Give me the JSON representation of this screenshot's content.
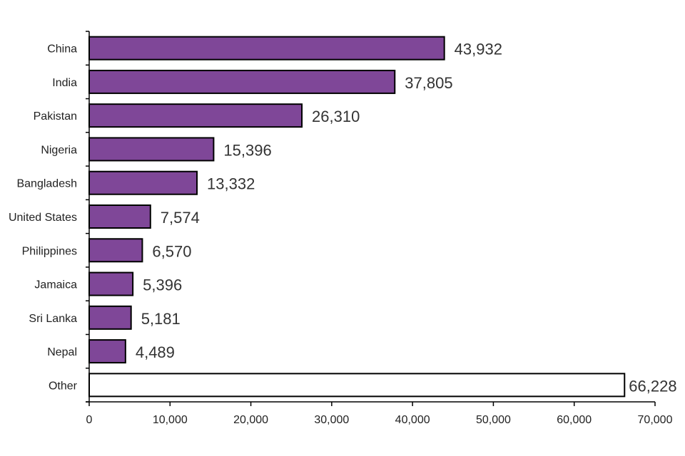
{
  "chart_data": {
    "type": "bar",
    "orientation": "horizontal",
    "categories": [
      "China",
      "India",
      "Pakistan",
      "Nigeria",
      "Bangladesh",
      "United States",
      "Philippines",
      "Jamaica",
      "Sri Lanka",
      "Nepal",
      "Other"
    ],
    "values": [
      43932,
      37805,
      26310,
      15396,
      13332,
      7574,
      6570,
      5396,
      5181,
      4489,
      66228
    ],
    "data_labels": [
      "43,932",
      "37,805",
      "26,310",
      "15,396",
      "13,332",
      "7,574",
      "6,570",
      "5,396",
      "5,181",
      "4,489",
      "66,228"
    ],
    "xlim": [
      0,
      70000
    ],
    "x_ticks": [
      0,
      10000,
      20000,
      30000,
      40000,
      50000,
      60000,
      70000
    ],
    "x_tick_labels": [
      "0",
      "10,000",
      "20,000",
      "30,000",
      "40,000",
      "50,000",
      "60,000",
      "70,000"
    ],
    "title": "",
    "xlabel": "",
    "ylabel": "",
    "grid": false,
    "colors": {
      "bar": "#7f4798",
      "other_bar": "#ffffff",
      "outline": "#000000"
    }
  }
}
